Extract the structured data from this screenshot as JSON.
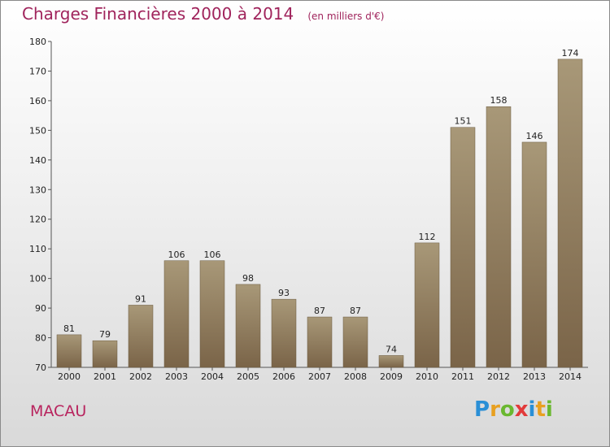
{
  "chart_data": {
    "type": "bar",
    "title": "Charges Financières 2000 à 2014",
    "subtitle": "(en milliers d'€)",
    "categories": [
      "2000",
      "2001",
      "2002",
      "2003",
      "2004",
      "2005",
      "2006",
      "2007",
      "2008",
      "2009",
      "2010",
      "2011",
      "2012",
      "2013",
      "2014"
    ],
    "values": [
      81,
      79,
      91,
      106,
      106,
      98,
      93,
      87,
      87,
      74,
      112,
      151,
      158,
      146,
      174
    ],
    "ylim": [
      70,
      180
    ],
    "yticks": [
      70,
      80,
      90,
      100,
      110,
      120,
      130,
      140,
      150,
      160,
      170,
      180
    ],
    "grid": false,
    "bar_color_top": "#a89878",
    "bar_color_bottom": "#7a6448"
  },
  "commune": "MACAU",
  "logo": {
    "letters": [
      "P",
      "r",
      "o",
      "x",
      "i",
      "t",
      "i"
    ],
    "colors": [
      "#2a8fd6",
      "#e8a020",
      "#6ab830",
      "#e23a3a",
      "#2a8fd6",
      "#e8a020",
      "#6ab830"
    ]
  },
  "colors": {
    "title": "#a0245c",
    "commune": "#b8245e"
  }
}
